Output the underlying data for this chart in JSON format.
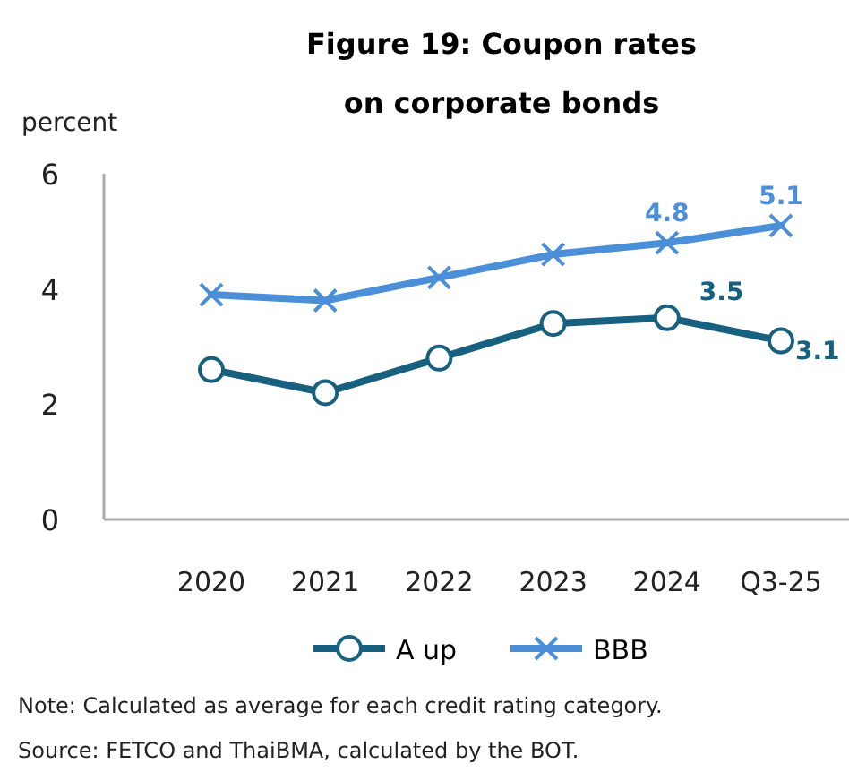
{
  "chart_data": {
    "type": "line",
    "title": "Figure 19: Coupon rates on corporate bonds",
    "ylabel": "percent",
    "categories": [
      "2020",
      "2021",
      "2022",
      "2023",
      "2024",
      "Q3-25"
    ],
    "series": [
      {
        "name": "A up",
        "color": "#17607f",
        "marker": "circle",
        "values": [
          2.6,
          2.2,
          2.8,
          3.4,
          3.5,
          3.1
        ],
        "value_labels": [
          null,
          null,
          null,
          null,
          "3.5",
          "3.1"
        ]
      },
      {
        "name": "BBB",
        "color": "#4a8fd8",
        "marker": "cross",
        "values": [
          3.9,
          3.8,
          4.2,
          4.6,
          4.8,
          5.1
        ],
        "value_labels": [
          null,
          null,
          null,
          null,
          "4.8",
          "5.1"
        ]
      }
    ],
    "ylim": [
      0,
      6
    ],
    "yticks": [
      0,
      2,
      4,
      6
    ],
    "grid": false,
    "legend": "bottom",
    "annotations": [
      "Note: Calculated as average for each credit rating category.",
      "Source: FETCO and ThaiBMA, calculated by the BOT."
    ]
  }
}
